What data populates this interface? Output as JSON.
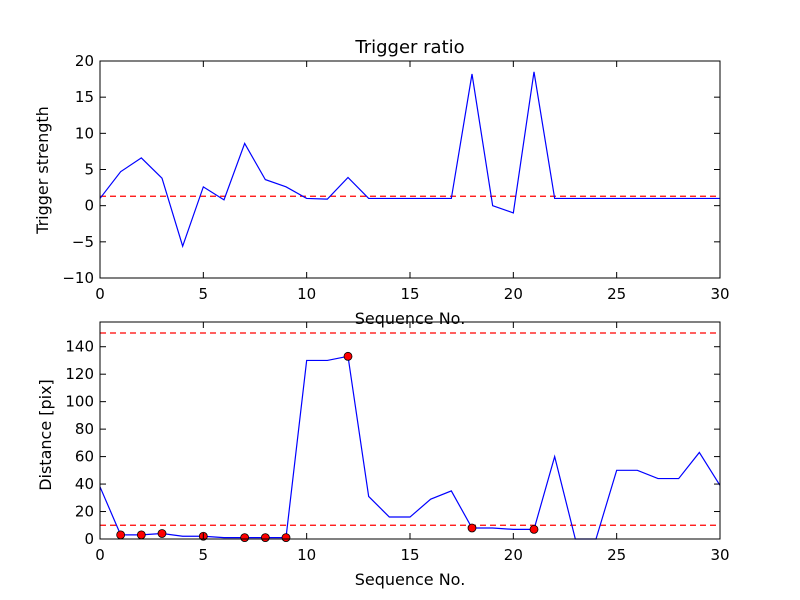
{
  "chart_data": [
    {
      "type": "line",
      "title": "Trigger ratio",
      "xlabel": "Sequence No.",
      "ylabel": "Trigger strength",
      "xlim": [
        0,
        30
      ],
      "ylim": [
        -10,
        20
      ],
      "xticks": [
        "0",
        "5",
        "10",
        "15",
        "20",
        "25",
        "30"
      ],
      "yticks": [
        "20",
        "15",
        "10",
        "5",
        "0",
        "−5",
        "−10"
      ],
      "grid": false,
      "series": [
        {
          "color": "#0000ff",
          "x": [
            0,
            1,
            2,
            3,
            4,
            5,
            6,
            7,
            8,
            9,
            10,
            11,
            12,
            13,
            14,
            15,
            16,
            17,
            18,
            19,
            20,
            21,
            22,
            23,
            24,
            25,
            26,
            27,
            28,
            29,
            30
          ],
          "values": [
            1.0,
            4.7,
            6.6,
            3.8,
            -5.6,
            2.6,
            0.8,
            8.6,
            3.6,
            2.6,
            1.0,
            0.9,
            3.9,
            1.0,
            1.0,
            1.0,
            1.0,
            1.0,
            18.2,
            0.0,
            -1.0,
            18.5,
            1.0,
            1.0,
            1.0,
            1.0,
            1.0,
            1.0,
            1.0,
            1.0,
            1.0
          ]
        }
      ],
      "reference_lines": [
        {
          "y": 1.3,
          "color": "#ff0000",
          "style": "dashed"
        }
      ]
    },
    {
      "type": "line",
      "title": "",
      "xlabel": "Sequence No.",
      "ylabel": "Distance [pix]",
      "xlim": [
        0,
        30
      ],
      "ylim": [
        0,
        158
      ],
      "xticks": [
        "0",
        "5",
        "10",
        "15",
        "20",
        "25",
        "30"
      ],
      "yticks": [
        "140",
        "120",
        "100",
        "80",
        "60",
        "40",
        "20",
        "0"
      ],
      "grid": false,
      "series": [
        {
          "color": "#0000ff",
          "x": [
            0,
            1,
            2,
            3,
            4,
            5,
            6,
            7,
            8,
            9,
            10,
            11,
            12,
            13,
            14,
            15,
            16,
            17,
            18,
            19,
            20,
            21,
            22,
            23,
            24,
            25,
            26,
            27,
            28,
            29,
            30
          ],
          "values": [
            38,
            3,
            3,
            4,
            2,
            2,
            1,
            1,
            1,
            1,
            130,
            130,
            133,
            31,
            16,
            16,
            29,
            35,
            8,
            8,
            7,
            7,
            60,
            0,
            0,
            50,
            50,
            44,
            44,
            63,
            39
          ]
        },
        {
          "color": "#ff0000",
          "marker": "circle",
          "x": [
            1,
            2,
            3,
            5,
            7,
            8,
            9,
            12,
            18,
            21
          ],
          "values": [
            3,
            3,
            4,
            2,
            1,
            1,
            1,
            133,
            8,
            7
          ]
        }
      ],
      "reference_lines": [
        {
          "y": 150,
          "color": "#ff0000",
          "style": "dashed"
        },
        {
          "y": 10,
          "color": "#ff0000",
          "style": "dashed"
        }
      ]
    }
  ]
}
